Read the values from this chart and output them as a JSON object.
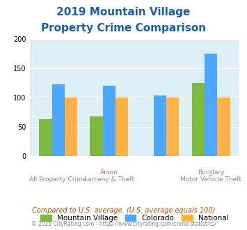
{
  "title_line1": "2019 Mountain Village",
  "title_line2": "Property Crime Comparison",
  "top_labels": [
    "",
    "Arson",
    "",
    "Burglary"
  ],
  "bottom_labels": [
    "All Property Crime",
    "Larceny & Theft",
    "",
    "Motor Vehicle Theft"
  ],
  "mountain_village": [
    63,
    68,
    0,
    125
  ],
  "colorado": [
    123,
    120,
    104,
    175
  ],
  "national": [
    100,
    100,
    100,
    100
  ],
  "bar_colors": {
    "mountain_village": "#7cb93e",
    "colorado": "#4da6ff",
    "national": "#ffb347"
  },
  "ylim": [
    0,
    200
  ],
  "yticks": [
    0,
    50,
    100,
    150,
    200
  ],
  "background_color": "#ddeef5",
  "title_color": "#1a5fa8",
  "xlabel_color": "#9b7cb5",
  "footer_text": "Compared to U.S. average. (U.S. average equals 100)",
  "copyright_text": "© 2025 CityRating.com - https://www.cityrating.com/crime-statistics/",
  "legend_labels": [
    "Mountain Village",
    "Colorado",
    "National"
  ]
}
